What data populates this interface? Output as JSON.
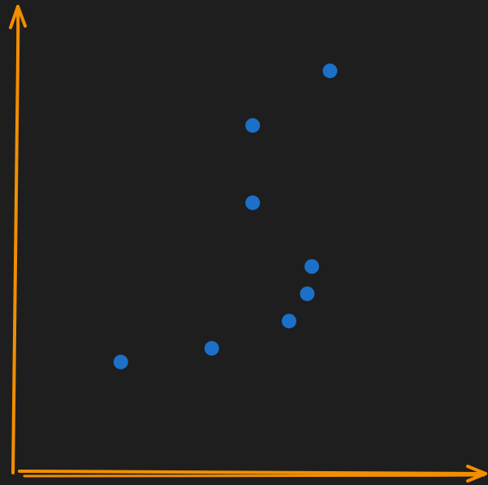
{
  "chart_data": {
    "type": "scatter",
    "title": "",
    "xlabel": "",
    "ylabel": "",
    "grid": false,
    "legend": "none",
    "xlim": [
      0,
      10
    ],
    "ylim": [
      0,
      10
    ],
    "series": [
      {
        "points": [
          {
            "x": 2.3,
            "y": 2.4
          },
          {
            "x": 4.3,
            "y": 2.7
          },
          {
            "x": 6.0,
            "y": 3.3
          },
          {
            "x": 6.4,
            "y": 3.9
          },
          {
            "x": 6.5,
            "y": 4.5
          },
          {
            "x": 5.2,
            "y": 5.9
          },
          {
            "x": 5.2,
            "y": 7.6
          },
          {
            "x": 6.9,
            "y": 8.8
          }
        ]
      }
    ]
  },
  "colors": {
    "background": "#1e1e1e",
    "axes": "#f18f01",
    "points": "#1c70c8"
  }
}
